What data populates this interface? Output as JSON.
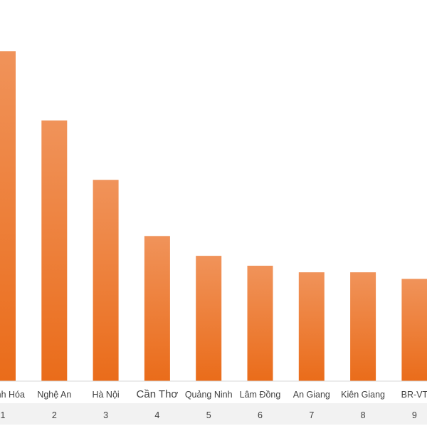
{
  "chart_data": {
    "type": "bar",
    "categories": [
      "Thanh Hóa",
      "Nghệ An",
      "Hà Nội",
      "Cần Thơ",
      "Quảng Ninh",
      "Lâm Đồng",
      "An Giang",
      "Kiên Giang",
      "BR-VT"
    ],
    "ranks": [
      "1",
      "2",
      "3",
      "4",
      "5",
      "6",
      "7",
      "8",
      "9"
    ],
    "values": [
      100,
      79,
      61,
      44,
      38,
      35,
      33,
      33,
      31
    ],
    "title": "",
    "xlabel": "",
    "ylabel": "",
    "ylim": [
      0,
      100
    ],
    "grid": false,
    "legend": "none"
  },
  "colors": {
    "bar_top": "#f0935a",
    "bar_bottom": "#ea6c1a",
    "axis": "#d9d9d9",
    "label": "#404040",
    "rank_band": "#f2f2f2"
  }
}
